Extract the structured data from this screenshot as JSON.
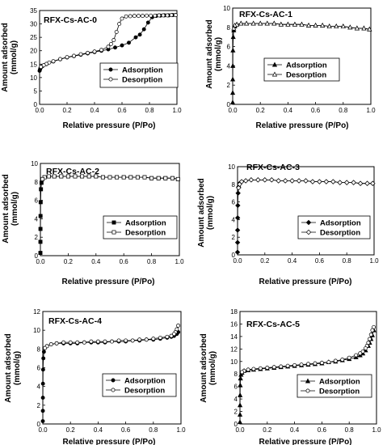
{
  "chart_data": [
    {
      "type": "line",
      "title": "RFX-Cs-AC-0",
      "xlabel": "Relative pressure (P/Po)",
      "ylabel": [
        "Amount adsorbed",
        "(mmol/g)"
      ],
      "xlim": [
        0,
        1.0
      ],
      "ylim": [
        0,
        35
      ],
      "xticks": [
        "0.0",
        "0.2",
        "0.4",
        "0.6",
        "0.8",
        "1.0"
      ],
      "yticks": [
        "0",
        "5",
        "10",
        "15",
        "20",
        "25",
        "30",
        "35"
      ],
      "legend": "bottom-right",
      "series": [
        {
          "name": "Adsorption",
          "marker": "filled-circle",
          "x": [
            0.0,
            0.003,
            0.006,
            0.01,
            0.02,
            0.05,
            0.1,
            0.15,
            0.2,
            0.25,
            0.3,
            0.35,
            0.4,
            0.45,
            0.5,
            0.55,
            0.6,
            0.65,
            0.7,
            0.73,
            0.76,
            0.79,
            0.82,
            0.85,
            0.88,
            0.91,
            0.94,
            0.97,
            0.99
          ],
          "y": [
            12.5,
            13.0,
            13.5,
            13.8,
            14.2,
            15.0,
            16.0,
            16.8,
            17.5,
            18.0,
            18.5,
            19.0,
            19.5,
            20.0,
            20.5,
            21.2,
            22.0,
            23.0,
            25.0,
            26.0,
            28.0,
            30.5,
            32.5,
            33.0,
            33.1,
            33.2,
            33.2,
            33.3,
            33.3
          ]
        },
        {
          "name": "Desorption",
          "marker": "open-circle",
          "x": [
            0.99,
            0.96,
            0.93,
            0.9,
            0.87,
            0.84,
            0.81,
            0.78,
            0.75,
            0.72,
            0.69,
            0.66,
            0.63,
            0.6,
            0.58,
            0.56,
            0.54,
            0.52,
            0.5,
            0.45,
            0.4,
            0.35,
            0.3,
            0.25,
            0.2,
            0.15,
            0.1,
            0.07,
            0.05,
            0.03,
            0.01
          ],
          "y": [
            33.3,
            33.3,
            33.2,
            33.2,
            33.2,
            33.1,
            33.1,
            33.1,
            33.0,
            33.0,
            33.0,
            32.9,
            32.8,
            32.0,
            30.0,
            27.0,
            24.0,
            22.5,
            21.5,
            20.3,
            19.7,
            19.2,
            18.7,
            18.1,
            17.6,
            16.9,
            16.1,
            15.6,
            15.1,
            14.6,
            14.0
          ]
        }
      ]
    },
    {
      "type": "line",
      "title": "RFX-Cs-AC-1",
      "xlabel": "Relative pressure (P/Po)",
      "ylabel": [
        "Amount adsorbed",
        "(mmol/g)"
      ],
      "xlim": [
        0,
        1.0
      ],
      "ylim": [
        0,
        10
      ],
      "xticks": [
        "0.0",
        "0.2",
        "0.4",
        "0.6",
        "0.8",
        "1.0"
      ],
      "yticks": [
        "0",
        "2",
        "4",
        "6",
        "8",
        "10"
      ],
      "legend": "bottom-right",
      "series": [
        {
          "name": "Adsorption",
          "marker": "filled-triangle",
          "x": [
            0.0,
            0.0003,
            0.0006,
            0.001,
            0.002,
            0.004,
            0.008,
            0.015,
            0.03,
            0.06,
            0.1,
            0.15,
            0.2,
            0.25,
            0.3,
            0.35,
            0.4,
            0.45,
            0.5,
            0.55,
            0.6,
            0.65,
            0.7,
            0.75,
            0.8,
            0.85,
            0.9,
            0.95,
            0.99
          ],
          "y": [
            0.2,
            1.2,
            2.6,
            4.0,
            5.6,
            7.0,
            7.7,
            8.1,
            8.3,
            8.4,
            8.4,
            8.4,
            8.4,
            8.4,
            8.4,
            8.3,
            8.3,
            8.3,
            8.3,
            8.2,
            8.2,
            8.2,
            8.1,
            8.1,
            8.1,
            8.0,
            7.9,
            7.9,
            7.8
          ]
        },
        {
          "name": "Desorption",
          "marker": "open-triangle",
          "x": [
            0.99,
            0.95,
            0.9,
            0.85,
            0.8,
            0.75,
            0.7,
            0.65,
            0.6,
            0.55,
            0.5,
            0.45,
            0.4,
            0.35,
            0.3,
            0.25,
            0.2,
            0.15,
            0.1,
            0.06,
            0.03,
            0.015,
            0.008
          ],
          "y": [
            7.8,
            7.9,
            7.9,
            8.0,
            8.1,
            8.1,
            8.1,
            8.2,
            8.2,
            8.2,
            8.3,
            8.3,
            8.3,
            8.3,
            8.4,
            8.4,
            8.4,
            8.4,
            8.4,
            8.4,
            8.3,
            8.2,
            7.9
          ]
        }
      ]
    },
    {
      "type": "line",
      "title": "RFX-Cs-AC-2",
      "xlabel": "Relative pressure (P/Po)",
      "ylabel": [
        "Amount adsorbed",
        "(mmol/g)"
      ],
      "xlim": [
        0,
        1.0
      ],
      "ylim": [
        0,
        10
      ],
      "xticks": [
        "0.0",
        "0.2",
        "0.4",
        "0.6",
        "0.8",
        "1.0"
      ],
      "yticks": [
        "0",
        "2",
        "4",
        "6",
        "8",
        "10"
      ],
      "legend": "bottom-right",
      "series": [
        {
          "name": "Adsorption",
          "marker": "filled-square",
          "x": [
            0.0,
            0.0003,
            0.0006,
            0.001,
            0.002,
            0.004,
            0.008,
            0.015,
            0.03,
            0.06,
            0.1,
            0.15,
            0.2,
            0.25,
            0.3,
            0.35,
            0.4,
            0.45,
            0.5,
            0.55,
            0.6,
            0.65,
            0.7,
            0.75,
            0.8,
            0.85,
            0.9,
            0.95,
            0.99
          ],
          "y": [
            0.3,
            1.5,
            2.9,
            4.3,
            5.8,
            7.2,
            7.9,
            8.3,
            8.5,
            8.6,
            8.6,
            8.6,
            8.6,
            8.6,
            8.6,
            8.6,
            8.6,
            8.5,
            8.5,
            8.5,
            8.5,
            8.5,
            8.5,
            8.5,
            8.4,
            8.4,
            8.4,
            8.4,
            8.3
          ]
        },
        {
          "name": "Desorption",
          "marker": "open-square",
          "x": [
            0.99,
            0.95,
            0.9,
            0.85,
            0.8,
            0.75,
            0.7,
            0.65,
            0.6,
            0.55,
            0.5,
            0.45,
            0.4,
            0.35,
            0.3,
            0.25,
            0.2,
            0.15,
            0.1,
            0.06,
            0.03,
            0.015
          ],
          "y": [
            8.3,
            8.4,
            8.4,
            8.4,
            8.4,
            8.5,
            8.5,
            8.5,
            8.5,
            8.5,
            8.5,
            8.5,
            8.6,
            8.6,
            8.6,
            8.6,
            8.6,
            8.6,
            8.6,
            8.6,
            8.5,
            8.3
          ]
        }
      ]
    },
    {
      "type": "line",
      "title": "RFX-Cs-AC-3",
      "xlabel": "Relative pressure (P/Po)",
      "ylabel": [
        "Amount adsorbed",
        "(mmol/g)"
      ],
      "xlim": [
        0,
        1.0
      ],
      "ylim": [
        0,
        10
      ],
      "xticks": [
        "0.0",
        "0.2",
        "0.4",
        "0.6",
        "0.8",
        "1.0"
      ],
      "yticks": [
        "0",
        "2",
        "4",
        "6",
        "8",
        "10"
      ],
      "legend": "bottom-right",
      "series": [
        {
          "name": "Adsorption",
          "marker": "filled-diamond",
          "x": [
            0.0,
            0.0003,
            0.0006,
            0.001,
            0.002,
            0.004,
            0.008,
            0.015,
            0.03,
            0.06,
            0.1,
            0.15,
            0.2,
            0.25,
            0.3,
            0.35,
            0.4,
            0.45,
            0.5,
            0.55,
            0.6,
            0.65,
            0.7,
            0.75,
            0.8,
            0.85,
            0.9,
            0.95,
            0.99
          ],
          "y": [
            0.3,
            1.4,
            2.8,
            4.2,
            5.6,
            7.0,
            7.7,
            8.1,
            8.3,
            8.4,
            8.5,
            8.5,
            8.5,
            8.5,
            8.4,
            8.4,
            8.4,
            8.4,
            8.4,
            8.3,
            8.3,
            8.3,
            8.3,
            8.2,
            8.2,
            8.2,
            8.1,
            8.1,
            8.1
          ]
        },
        {
          "name": "Desorption",
          "marker": "open-diamond",
          "x": [
            0.99,
            0.95,
            0.9,
            0.85,
            0.8,
            0.75,
            0.7,
            0.65,
            0.6,
            0.55,
            0.5,
            0.45,
            0.4,
            0.35,
            0.3,
            0.25,
            0.2,
            0.15,
            0.1,
            0.06,
            0.03,
            0.015,
            0.008
          ],
          "y": [
            8.1,
            8.1,
            8.1,
            8.2,
            8.2,
            8.2,
            8.3,
            8.3,
            8.3,
            8.3,
            8.4,
            8.4,
            8.4,
            8.4,
            8.4,
            8.5,
            8.5,
            8.5,
            8.5,
            8.4,
            8.3,
            8.0,
            7.6
          ]
        }
      ]
    },
    {
      "type": "line",
      "title": "RFX-Cs-AC-4",
      "xlabel": "Relative pressure (P/Po)",
      "ylabel": [
        "Amount adsorbed",
        "(mmol/g)"
      ],
      "xlim": [
        0,
        1.0
      ],
      "ylim": [
        0,
        12
      ],
      "xticks": [
        "0.0",
        "0.2",
        "0.4",
        "0.6",
        "0.8",
        "1.0"
      ],
      "yticks": [
        "0",
        "2",
        "4",
        "6",
        "8",
        "10",
        "12"
      ],
      "legend": "bottom-right",
      "series": [
        {
          "name": "Adsorption",
          "marker": "filled-circle",
          "x": [
            0.0,
            0.0003,
            0.0006,
            0.001,
            0.002,
            0.004,
            0.008,
            0.015,
            0.03,
            0.06,
            0.1,
            0.15,
            0.2,
            0.25,
            0.3,
            0.35,
            0.4,
            0.45,
            0.5,
            0.55,
            0.6,
            0.65,
            0.7,
            0.75,
            0.8,
            0.85,
            0.9,
            0.93,
            0.95,
            0.97,
            0.98
          ],
          "y": [
            0.3,
            1.4,
            2.8,
            4.3,
            5.8,
            7.0,
            7.7,
            8.1,
            8.3,
            8.5,
            8.6,
            8.6,
            8.6,
            8.6,
            8.7,
            8.7,
            8.7,
            8.7,
            8.8,
            8.8,
            8.8,
            8.9,
            8.9,
            9.0,
            9.0,
            9.1,
            9.2,
            9.3,
            9.4,
            9.6,
            9.8
          ]
        },
        {
          "name": "Desorption",
          "marker": "open-circle",
          "x": [
            0.98,
            0.97,
            0.96,
            0.95,
            0.93,
            0.9,
            0.85,
            0.8,
            0.75,
            0.7,
            0.65,
            0.6,
            0.55,
            0.5,
            0.45,
            0.4,
            0.35,
            0.3,
            0.25,
            0.2,
            0.15,
            0.1,
            0.06,
            0.03,
            0.015
          ],
          "y": [
            10.5,
            10.1,
            9.8,
            9.6,
            9.4,
            9.3,
            9.2,
            9.1,
            9.0,
            9.0,
            8.9,
            8.9,
            8.9,
            8.8,
            8.8,
            8.8,
            8.8,
            8.7,
            8.7,
            8.7,
            8.7,
            8.6,
            8.5,
            8.3,
            8.1
          ]
        }
      ]
    },
    {
      "type": "line",
      "title": "RFX-Cs-AC-5",
      "xlabel": "Relative pressure (P/Po)",
      "ylabel": [
        "Amount adsorbed",
        "(mmol/g)"
      ],
      "xlim": [
        0,
        1.0
      ],
      "ylim": [
        0,
        18
      ],
      "xticks": [
        "0.0",
        "0.2",
        "0.4",
        "0.6",
        "0.8",
        "1.0"
      ],
      "yticks": [
        "0",
        "2",
        "4",
        "6",
        "8",
        "10",
        "12",
        "14",
        "16",
        "18"
      ],
      "legend": "bottom-right",
      "series": [
        {
          "name": "Adsorption",
          "marker": "filled-triangle",
          "x": [
            0.0,
            0.0003,
            0.0006,
            0.001,
            0.002,
            0.004,
            0.008,
            0.015,
            0.03,
            0.06,
            0.1,
            0.15,
            0.2,
            0.25,
            0.3,
            0.35,
            0.4,
            0.45,
            0.5,
            0.55,
            0.6,
            0.65,
            0.7,
            0.75,
            0.8,
            0.85,
            0.88,
            0.9,
            0.92,
            0.94,
            0.95,
            0.96,
            0.97,
            0.98
          ],
          "y": [
            0.3,
            1.5,
            3.0,
            4.6,
            6.2,
            7.3,
            7.9,
            8.2,
            8.5,
            8.6,
            8.7,
            8.8,
            8.9,
            9.0,
            9.1,
            9.2,
            9.3,
            9.4,
            9.5,
            9.6,
            9.7,
            9.9,
            10.0,
            10.2,
            10.4,
            10.7,
            11.0,
            11.3,
            11.8,
            12.5,
            13.0,
            13.6,
            14.2,
            15.0
          ]
        },
        {
          "name": "Desorption",
          "marker": "open-circle",
          "x": [
            0.98,
            0.97,
            0.96,
            0.95,
            0.94,
            0.93,
            0.92,
            0.9,
            0.88,
            0.85,
            0.8,
            0.75,
            0.7,
            0.65,
            0.6,
            0.55,
            0.5,
            0.45,
            0.4,
            0.35,
            0.3,
            0.25,
            0.2,
            0.15,
            0.1,
            0.06,
            0.03,
            0.015
          ],
          "y": [
            15.5,
            15.0,
            14.3,
            13.6,
            13.0,
            12.5,
            12.1,
            11.6,
            11.3,
            11.0,
            10.6,
            10.3,
            10.1,
            9.9,
            9.8,
            9.7,
            9.6,
            9.5,
            9.4,
            9.3,
            9.2,
            9.1,
            9.0,
            8.9,
            8.8,
            8.7,
            8.5,
            8.3
          ]
        }
      ]
    }
  ]
}
